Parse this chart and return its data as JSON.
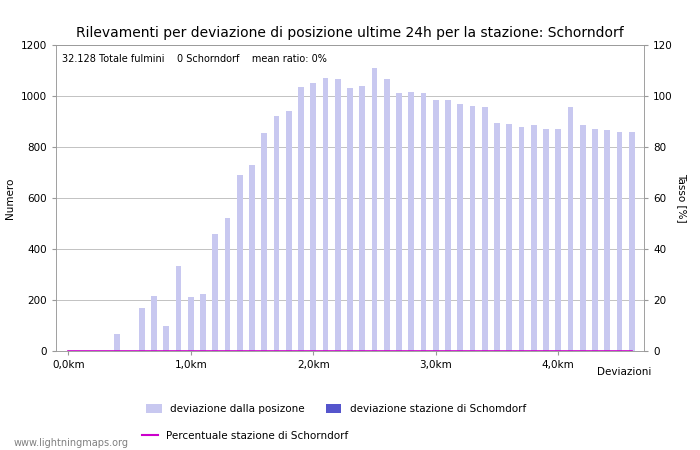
{
  "title": "Rilevamenti per deviazione di posizione ultime 24h per la stazione: Schorndorf",
  "subtitle": "32.128 Totale fulmini    0 Schorndorf    mean ratio: 0%",
  "xlabel": "Deviazioni",
  "ylabel_left": "Numero",
  "ylabel_right": "Tasso [%]",
  "watermark": "www.lightningmaps.org",
  "x_tick_labels": [
    "0,0km",
    "1,0km",
    "2,0km",
    "3,0km",
    "4,0km"
  ],
  "x_tick_positions": [
    0,
    10,
    20,
    30,
    40
  ],
  "ylim_left": [
    0,
    1200
  ],
  "ylim_right": [
    0,
    120
  ],
  "yticks_left": [
    0,
    200,
    400,
    600,
    800,
    1000,
    1200
  ],
  "yticks_right": [
    0,
    20,
    40,
    60,
    80,
    100,
    120
  ],
  "bar_color_light": "#c8c8f0",
  "bar_color_dark": "#5555cc",
  "line_color": "#cc00cc",
  "legend_label_1": "deviazione dalla posizone",
  "legend_label_2": "deviazione stazione di Schomdorf",
  "legend_label_3": "Percentuale stazione di Schorndorf",
  "bar_values": [
    0,
    0,
    0,
    0,
    65,
    0,
    170,
    215,
    100,
    335,
    210,
    225,
    460,
    520,
    690,
    730,
    855,
    920,
    940,
    1035,
    1050,
    1070,
    1065,
    1030,
    1040,
    1110,
    1065,
    1010,
    1015,
    1010,
    985,
    985,
    970,
    960,
    955,
    895,
    890,
    880,
    885,
    870,
    870,
    955,
    885,
    870,
    865,
    860,
    860
  ],
  "bar_dark_values": [
    0,
    0,
    0,
    0,
    0,
    0,
    0,
    0,
    0,
    0,
    0,
    0,
    0,
    0,
    0,
    0,
    0,
    0,
    0,
    0,
    0,
    0,
    0,
    0,
    0,
    0,
    0,
    0,
    0,
    0,
    0,
    0,
    0,
    0,
    0,
    0,
    0,
    0,
    0,
    0,
    0,
    0,
    0,
    0,
    0,
    0,
    0
  ],
  "line_values": [
    0,
    0,
    0,
    0,
    0,
    0,
    0,
    0,
    0,
    0,
    0,
    0,
    0,
    0,
    0,
    0,
    0,
    0,
    0,
    0,
    0,
    0,
    0,
    0,
    0,
    0,
    0,
    0,
    0,
    0,
    0,
    0,
    0,
    0,
    0,
    0,
    0,
    0,
    0,
    0,
    0,
    0,
    0,
    0,
    0,
    0,
    0
  ],
  "background_color": "#ffffff",
  "grid_color": "#aaaaaa",
  "title_fontsize": 10,
  "label_fontsize": 7.5,
  "tick_fontsize": 7.5
}
